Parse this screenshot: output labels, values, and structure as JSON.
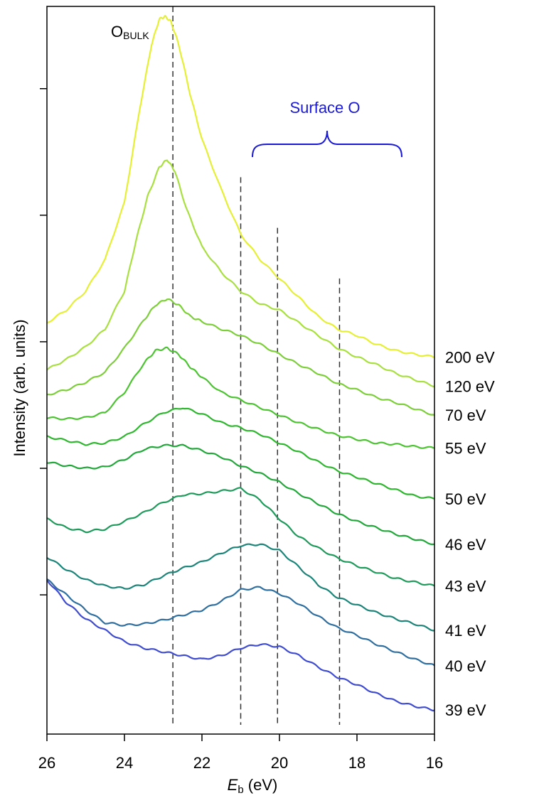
{
  "chart_data": {
    "type": "line",
    "xlabel_main": "E",
    "xlabel_sub": "b",
    "xlabel_unit": " (eV)",
    "ylabel": "Intensity (arb. units)",
    "xlim": [
      26,
      16
    ],
    "ylim": [
      -1,
      56.5
    ],
    "x_ticks": [
      26,
      24,
      22,
      20,
      18,
      16
    ],
    "x_tick_labels": [
      "26",
      "24",
      "22",
      "20",
      "18",
      "16"
    ],
    "y_ticks": [
      10,
      20,
      30,
      40,
      50
    ],
    "y_tick_labels": [
      "",
      "",
      "",
      "",
      ""
    ],
    "grid": false,
    "annotations": {
      "bulk_main": "O",
      "bulk_sub": "BULK",
      "surface": "Surface O",
      "surface_color": "#1a1ad6"
    },
    "reference_lines": [
      {
        "x": 22.75,
        "y_top": 56.5
      },
      {
        "x": 21.0,
        "y_top": 43.0
      },
      {
        "x": 20.05,
        "y_top": 39.0
      },
      {
        "x": 18.45,
        "y_top": 35.0
      }
    ],
    "series": [
      {
        "name": "200 eV",
        "color": "#e6f032",
        "x": [
          26,
          25.5,
          25,
          24.5,
          24,
          23.6,
          23.3,
          23.1,
          22.95,
          22.8,
          22.6,
          22.3,
          22,
          21.5,
          21,
          20.5,
          20,
          19.5,
          19,
          18.5,
          18,
          17.5,
          17,
          16.5,
          16
        ],
        "y": [
          31.5,
          32.5,
          34,
          36.5,
          41,
          48.5,
          53.5,
          55.5,
          55.7,
          55.3,
          53.5,
          49.5,
          46,
          42,
          38.5,
          36.5,
          35,
          33.5,
          32,
          31,
          30.5,
          29.8,
          29.3,
          29,
          28.8
        ]
      },
      {
        "name": "120 eV",
        "color": "#a8e040",
        "x": [
          26,
          25.5,
          25,
          24.5,
          24,
          23.7,
          23.4,
          23.1,
          22.9,
          22.7,
          22.4,
          22,
          21.5,
          21,
          20.5,
          20,
          19.5,
          19,
          18.5,
          18,
          17.5,
          17,
          16.5,
          16
        ],
        "y": [
          27.8,
          28.6,
          29.6,
          31,
          34,
          38,
          41.5,
          43.8,
          44.4,
          43.5,
          40.5,
          37.5,
          35.5,
          34,
          33,
          32.5,
          31.5,
          30.5,
          29.5,
          28.8,
          28.2,
          27.5,
          27,
          26.5
        ]
      },
      {
        "name": "70 eV",
        "color": "#7ccf38",
        "x": [
          26,
          25.5,
          25,
          24.5,
          24,
          23.5,
          23.2,
          22.9,
          22.6,
          22.3,
          22,
          21.5,
          21,
          20.5,
          20,
          19.5,
          19,
          18.5,
          18,
          17.5,
          17,
          16.5,
          16
        ],
        "y": [
          25.8,
          26.2,
          26.8,
          27.6,
          29.5,
          31.7,
          32.9,
          33.4,
          32.9,
          32,
          31.6,
          31,
          30.5,
          29.8,
          29,
          28.2,
          27.5,
          26.7,
          26.2,
          25.6,
          25.2,
          24.7,
          24.2
        ]
      },
      {
        "name": "55 eV",
        "color": "#4cc431",
        "x": [
          26,
          25.5,
          25,
          24.5,
          24,
          23.5,
          23.2,
          22.9,
          22.6,
          22.3,
          22,
          21.5,
          21,
          20.5,
          20,
          19.5,
          19,
          18.5,
          18,
          17.5,
          17,
          16.5,
          16
        ],
        "y": [
          24,
          23.9,
          24,
          24.4,
          26,
          28.3,
          29.3,
          29.5,
          29,
          28,
          27.2,
          26,
          25.4,
          24.8,
          24.2,
          23.6,
          23.1,
          22.6,
          22.3,
          22,
          21.9,
          21.7,
          21.6
        ]
      },
      {
        "name": "50 eV",
        "color": "#2eb72e",
        "x": [
          26,
          25.5,
          25,
          24.5,
          24,
          23.5,
          23,
          22.5,
          22,
          21.5,
          21,
          20.5,
          20,
          19.5,
          19,
          18.5,
          18,
          17.5,
          17,
          16.5,
          16
        ],
        "y": [
          22.5,
          22.2,
          21.9,
          22,
          22.5,
          23.5,
          24.4,
          24.8,
          24.3,
          23.6,
          23.2,
          22.7,
          22,
          21.3,
          20.5,
          19.8,
          19.3,
          18.8,
          18.3,
          17.8,
          17.6
        ]
      },
      {
        "name": "46 eV",
        "color": "#22a83a",
        "x": [
          26,
          25.5,
          25,
          24.5,
          24,
          23.5,
          23,
          22.5,
          22,
          21.5,
          21,
          20.5,
          20,
          19.5,
          19,
          18.5,
          18,
          17.5,
          17,
          16.5,
          16
        ],
        "y": [
          20.5,
          20.2,
          20,
          20.1,
          20.7,
          21.5,
          21.8,
          21.8,
          21.4,
          20.9,
          20.2,
          19.6,
          18.9,
          18,
          17.2,
          16.4,
          15.8,
          15.3,
          14.8,
          14.4,
          14
        ]
      },
      {
        "name": "43 eV",
        "color": "#1e9a5a",
        "x": [
          26,
          25.5,
          25,
          24.5,
          24,
          23.5,
          23,
          22.5,
          22,
          21.5,
          21,
          20.5,
          20,
          19.5,
          19,
          18.5,
          18,
          17.5,
          17,
          16.5,
          16
        ],
        "y": [
          16,
          15.3,
          15,
          15.2,
          15.8,
          16.5,
          17.3,
          17.9,
          18,
          18.2,
          18.4,
          17.5,
          16,
          14.6,
          13.7,
          12.9,
          12.3,
          11.8,
          11.3,
          11,
          10.7
        ]
      },
      {
        "name": "41 eV",
        "color": "#1c8478",
        "x": [
          26,
          25.5,
          25,
          24.5,
          24,
          23.5,
          23,
          22.5,
          22,
          21.5,
          21,
          20.5,
          20,
          19.5,
          19,
          18.5,
          18,
          17.5,
          17,
          16.5,
          16
        ],
        "y": [
          13,
          12,
          11.2,
          10.7,
          10.5,
          10.8,
          11.5,
          12.1,
          12.6,
          13.3,
          13.9,
          14,
          13.5,
          12.2,
          10.8,
          9.8,
          9.2,
          8.6,
          8.1,
          7.7,
          7.2
        ]
      },
      {
        "name": "40 eV",
        "color": "#2f6fa0",
        "x": [
          26,
          25.5,
          25,
          24.5,
          24,
          23.5,
          23,
          22.5,
          22,
          21.5,
          21,
          20.5,
          20,
          19.5,
          19,
          18.5,
          18,
          17.5,
          17,
          16.5,
          16
        ],
        "y": [
          11.2,
          10,
          8.8,
          7.8,
          7.6,
          7.7,
          8,
          8.4,
          8.8,
          9.5,
          10.4,
          10.6,
          10.1,
          9.3,
          8.3,
          7.4,
          6.8,
          6.1,
          5.5,
          4.9,
          4.4
        ]
      },
      {
        "name": "39 eV",
        "color": "#3f4cd0",
        "x": [
          26,
          25.5,
          25,
          24.5,
          24,
          23.5,
          23,
          22.5,
          22,
          21.5,
          21,
          20.5,
          20,
          19.5,
          19,
          18.5,
          18,
          17.5,
          17,
          16.5,
          16
        ],
        "y": [
          11.2,
          9.4,
          8.1,
          7.2,
          6.3,
          5.8,
          5.5,
          5.2,
          4.9,
          5.2,
          5.8,
          6.1,
          5.9,
          5.2,
          4.3,
          3.5,
          2.9,
          2.2,
          1.6,
          1.2,
          0.9
        ]
      }
    ]
  }
}
